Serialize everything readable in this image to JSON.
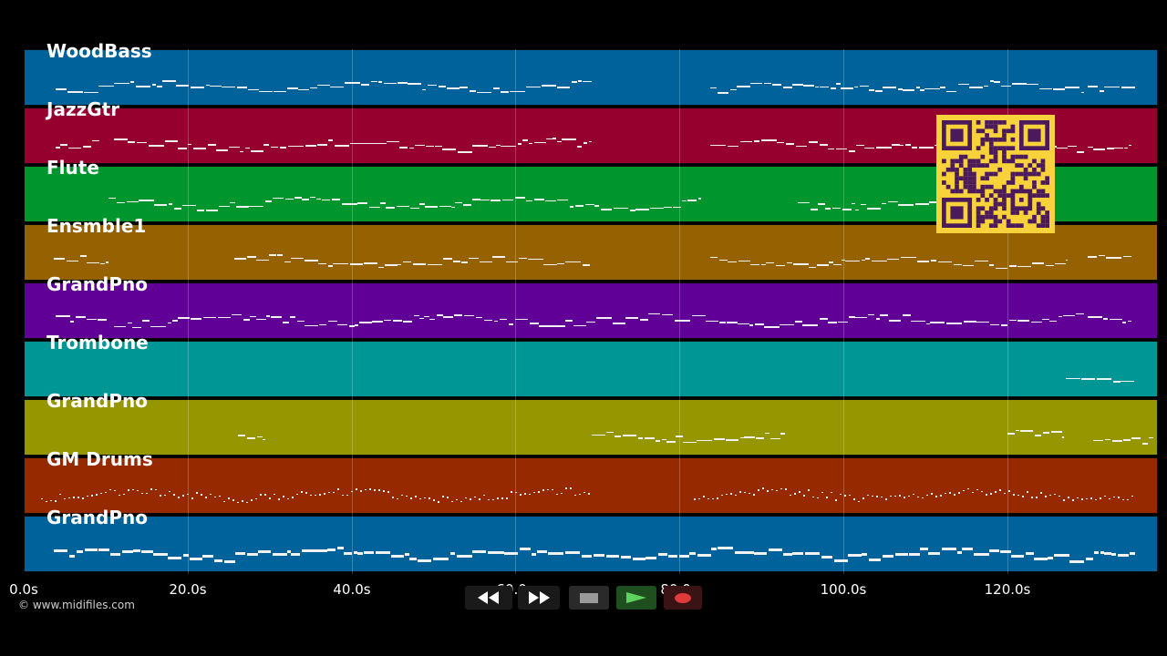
{
  "timeline": {
    "ticks": [
      "0.0s",
      "20.0s",
      "40.0s",
      "60.0s",
      "80.0s",
      "100.0s",
      "120.0s"
    ]
  },
  "tracks": [
    {
      "name": "WoodBass",
      "color": "#00629a"
    },
    {
      "name": "JazzGtr",
      "color": "#96002f"
    },
    {
      "name": "Flute",
      "color": "#00962d"
    },
    {
      "name": "Ensmble1",
      "color": "#966100"
    },
    {
      "name": "GrandPno",
      "color": "#600096"
    },
    {
      "name": "Trombone",
      "color": "#009696"
    },
    {
      "name": "GrandPno",
      "color": "#969600"
    },
    {
      "name": "GM Drums",
      "color": "#962900"
    },
    {
      "name": "GrandPno",
      "color": "#00629a"
    }
  ],
  "transport": {
    "rewind_icon": "rewind-icon",
    "forward_icon": "fast-forward-icon",
    "stop_icon": "stop-icon",
    "play_icon": "play-icon",
    "record_icon": "record-icon"
  },
  "footer": {
    "copyright": "© www.midifiles.com"
  },
  "qr": {
    "icon": "qr-code-icon",
    "color": "#f7d23a",
    "dark": "#4a1a5c"
  }
}
